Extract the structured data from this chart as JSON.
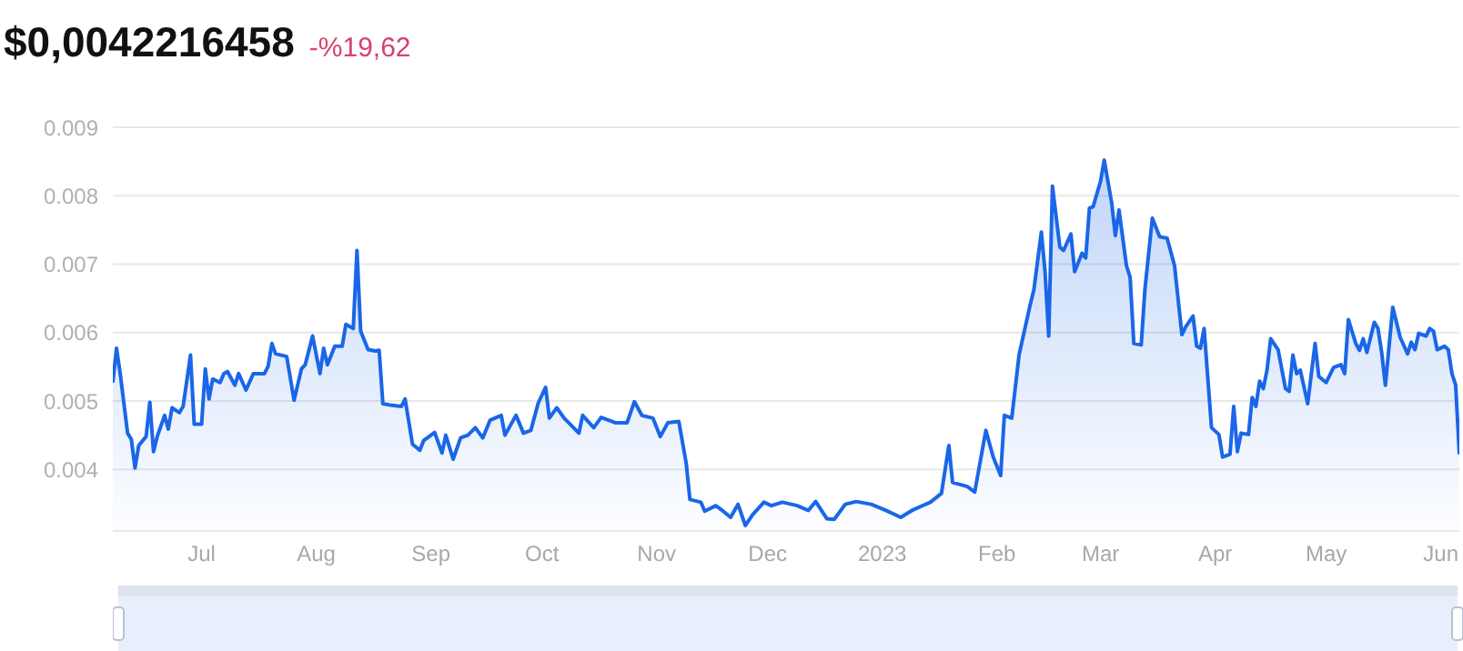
{
  "chart_data": {
    "type": "area",
    "title": "$0,0042216458",
    "subtitle": "-%19,62",
    "x": [
      "2022-06-07",
      "2022-06-08",
      "2022-06-09",
      "2022-06-11",
      "2022-06-12",
      "2022-06-13",
      "2022-06-14",
      "2022-06-16",
      "2022-06-17",
      "2022-06-18",
      "2022-06-19",
      "2022-06-21",
      "2022-06-22",
      "2022-06-23",
      "2022-06-25",
      "2022-06-26",
      "2022-06-28",
      "2022-06-29",
      "2022-07-01",
      "2022-07-02",
      "2022-07-03",
      "2022-07-04",
      "2022-07-06",
      "2022-07-07",
      "2022-07-08",
      "2022-07-10",
      "2022-07-11",
      "2022-07-13",
      "2022-07-15",
      "2022-07-18",
      "2022-07-19",
      "2022-07-20",
      "2022-07-21",
      "2022-07-24",
      "2022-07-26",
      "2022-07-28",
      "2022-07-29",
      "2022-07-31",
      "2022-08-02",
      "2022-08-03",
      "2022-08-04",
      "2022-08-06",
      "2022-08-08",
      "2022-08-09",
      "2022-08-11",
      "2022-08-12",
      "2022-08-13",
      "2022-08-15",
      "2022-08-17",
      "2022-08-18",
      "2022-08-19",
      "2022-08-21",
      "2022-08-24",
      "2022-08-25",
      "2022-08-27",
      "2022-08-29",
      "2022-08-30",
      "2022-09-02",
      "2022-09-04",
      "2022-09-05",
      "2022-09-07",
      "2022-09-09",
      "2022-09-11",
      "2022-09-13",
      "2022-09-15",
      "2022-09-17",
      "2022-09-20",
      "2022-09-21",
      "2022-09-24",
      "2022-09-26",
      "2022-09-28",
      "2022-09-30",
      "2022-10-02",
      "2022-10-03",
      "2022-10-05",
      "2022-10-07",
      "2022-10-11",
      "2022-10-12",
      "2022-10-15",
      "2022-10-17",
      "2022-10-21",
      "2022-10-24",
      "2022-10-26",
      "2022-10-28",
      "2022-10-31",
      "2022-11-02",
      "2022-11-04",
      "2022-11-07",
      "2022-11-09",
      "2022-11-10",
      "2022-11-13",
      "2022-11-14",
      "2022-11-17",
      "2022-11-19",
      "2022-11-21",
      "2022-11-23",
      "2022-11-25",
      "2022-11-27",
      "2022-11-30",
      "2022-12-02",
      "2022-12-05",
      "2022-12-09",
      "2022-12-12",
      "2022-12-14",
      "2022-12-17",
      "2022-12-19",
      "2022-12-22",
      "2022-12-25",
      "2022-12-29",
      "2023-01-02",
      "2023-01-06",
      "2023-01-09",
      "2023-01-14",
      "2023-01-17",
      "2023-01-19",
      "2023-01-20",
      "2023-01-24",
      "2023-01-26",
      "2023-01-29",
      "2023-01-31",
      "2023-02-02",
      "2023-02-03",
      "2023-02-05",
      "2023-02-07",
      "2023-02-10",
      "2023-02-11",
      "2023-02-13",
      "2023-02-14",
      "2023-02-15",
      "2023-02-16",
      "2023-02-18",
      "2023-02-19",
      "2023-02-21",
      "2023-02-22",
      "2023-02-24",
      "2023-02-25",
      "2023-02-26",
      "2023-02-27",
      "2023-03-01",
      "2023-03-02",
      "2023-03-04",
      "2023-03-05",
      "2023-03-06",
      "2023-03-08",
      "2023-03-09",
      "2023-03-10",
      "2023-03-12",
      "2023-03-13",
      "2023-03-15",
      "2023-03-17",
      "2023-03-19",
      "2023-03-21",
      "2023-03-23",
      "2023-03-24",
      "2023-03-26",
      "2023-03-27",
      "2023-03-28",
      "2023-03-29",
      "2023-03-31",
      "2023-04-02",
      "2023-04-03",
      "2023-04-05",
      "2023-04-06",
      "2023-04-07",
      "2023-04-08",
      "2023-04-10",
      "2023-04-11",
      "2023-04-12",
      "2023-04-13",
      "2023-04-14",
      "2023-04-15",
      "2023-04-16",
      "2023-04-18",
      "2023-04-20",
      "2023-04-21",
      "2023-04-22",
      "2023-04-23",
      "2023-04-24",
      "2023-04-26",
      "2023-04-28",
      "2023-04-29",
      "2023-05-01",
      "2023-05-03",
      "2023-05-05",
      "2023-05-06",
      "2023-05-07",
      "2023-05-09",
      "2023-05-10",
      "2023-05-11",
      "2023-05-12",
      "2023-05-14",
      "2023-05-15",
      "2023-05-16",
      "2023-05-17",
      "2023-05-19",
      "2023-05-21",
      "2023-05-23",
      "2023-05-24",
      "2023-05-25",
      "2023-05-26",
      "2023-05-28",
      "2023-05-29",
      "2023-05-30",
      "2023-05-31",
      "2023-06-02",
      "2023-06-03",
      "2023-06-04",
      "2023-06-05",
      "2023-06-06"
    ],
    "series": [
      {
        "color": "#1a66e8",
        "values": [
          0.00527,
          0.00577,
          0.0054,
          0.00453,
          0.00444,
          0.00402,
          0.00435,
          0.00448,
          0.00498,
          0.00426,
          0.00448,
          0.00479,
          0.00459,
          0.0049,
          0.00483,
          0.00492,
          0.00567,
          0.00466,
          0.00466,
          0.00547,
          0.00503,
          0.00532,
          0.00527,
          0.0054,
          0.00543,
          0.00523,
          0.0054,
          0.00516,
          0.0054,
          0.0054,
          0.00551,
          0.00584,
          0.00569,
          0.00565,
          0.00501,
          0.00547,
          0.00553,
          0.00595,
          0.0054,
          0.00577,
          0.00553,
          0.0058,
          0.0058,
          0.00612,
          0.00606,
          0.0072,
          0.00602,
          0.00575,
          0.00573,
          0.00574,
          0.00496,
          0.00494,
          0.00492,
          0.00503,
          0.00437,
          0.00428,
          0.00442,
          0.00454,
          0.00424,
          0.0045,
          0.00415,
          0.00446,
          0.0045,
          0.00461,
          0.00446,
          0.00472,
          0.00479,
          0.0045,
          0.00479,
          0.00453,
          0.00457,
          0.00497,
          0.0052,
          0.00475,
          0.0049,
          0.00475,
          0.00453,
          0.00479,
          0.00461,
          0.00476,
          0.00468,
          0.00468,
          0.00499,
          0.00479,
          0.00475,
          0.00448,
          0.00468,
          0.0047,
          0.00409,
          0.00356,
          0.00352,
          0.00339,
          0.00347,
          0.00339,
          0.0033,
          0.00349,
          0.00318,
          0.00334,
          0.00352,
          0.00347,
          0.00352,
          0.00347,
          0.0034,
          0.00353,
          0.00328,
          0.00327,
          0.00349,
          0.00353,
          0.00349,
          0.0034,
          0.0033,
          0.0034,
          0.00352,
          0.00365,
          0.00435,
          0.00381,
          0.00375,
          0.00367,
          0.00457,
          0.00418,
          0.00391,
          0.00479,
          0.00475,
          0.00568,
          0.00641,
          0.00663,
          0.00747,
          0.00689,
          0.00595,
          0.00814,
          0.00725,
          0.0072,
          0.00744,
          0.00689,
          0.00716,
          0.00709,
          0.00782,
          0.00784,
          0.00821,
          0.00852,
          0.0079,
          0.00742,
          0.00779,
          0.00698,
          0.00681,
          0.00584,
          0.00582,
          0.00663,
          0.00767,
          0.0074,
          0.00738,
          0.00698,
          0.00597,
          0.00608,
          0.00624,
          0.0058,
          0.00577,
          0.00606,
          0.00461,
          0.00451,
          0.00418,
          0.00422,
          0.00492,
          0.00426,
          0.00453,
          0.00451,
          0.00505,
          0.00492,
          0.00529,
          0.00518,
          0.00545,
          0.00591,
          0.00575,
          0.00518,
          0.00514,
          0.00567,
          0.0054,
          0.00545,
          0.00496,
          0.00584,
          0.00536,
          0.00527,
          0.00549,
          0.00553,
          0.0054,
          0.00619,
          0.00584,
          0.00574,
          0.00591,
          0.00571,
          0.00615,
          0.00606,
          0.00571,
          0.00523,
          0.00637,
          0.00593,
          0.00569,
          0.00586,
          0.00575,
          0.00599,
          0.00595,
          0.00606,
          0.00602,
          0.00575,
          0.0058,
          0.00575,
          0.0054,
          0.00523,
          0.00422
        ]
      }
    ],
    "xlim": [
      "2022-06-07",
      "2023-06-06"
    ],
    "xticks": [
      {
        "value": "2022-07-01",
        "label": "Jul"
      },
      {
        "value": "2022-08-01",
        "label": "Aug"
      },
      {
        "value": "2022-09-01",
        "label": "Sep"
      },
      {
        "value": "2022-10-01",
        "label": "Oct"
      },
      {
        "value": "2022-11-01",
        "label": "Nov"
      },
      {
        "value": "2022-12-01",
        "label": "Dec"
      },
      {
        "value": "2023-01-01",
        "label": "2023"
      },
      {
        "value": "2023-02-01",
        "label": "Feb"
      },
      {
        "value": "2023-03-01",
        "label": "Mar"
      },
      {
        "value": "2023-04-01",
        "label": "Apr"
      },
      {
        "value": "2023-05-01",
        "label": "May"
      },
      {
        "value": "2023-06-01",
        "label": "Jun"
      }
    ],
    "ylim": [
      0.0031,
      0.009
    ],
    "yticks": [
      0.004,
      0.005,
      0.006,
      0.007,
      0.008,
      0.009
    ],
    "grid": "y"
  }
}
